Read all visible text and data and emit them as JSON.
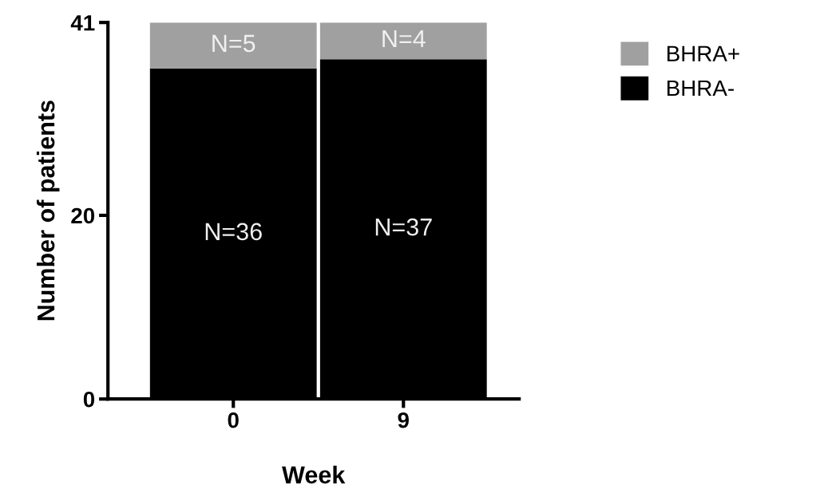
{
  "chart_data": {
    "type": "bar",
    "stacked": true,
    "xlabel": "Week",
    "ylabel": "Number of patients",
    "categories": [
      "0",
      "9"
    ],
    "series": [
      {
        "name": "BHRA-",
        "color": "#000000",
        "values": [
          36,
          37
        ],
        "value_labels": [
          "N=36",
          "N=37"
        ]
      },
      {
        "name": "BHRA+",
        "color": "#a0a0a0",
        "values": [
          5,
          4
        ],
        "value_labels": [
          "N=5",
          "N=4"
        ]
      }
    ],
    "ylim": [
      0,
      41
    ],
    "yticks": [
      0,
      20,
      41
    ],
    "grid": false,
    "legend": "top right"
  }
}
